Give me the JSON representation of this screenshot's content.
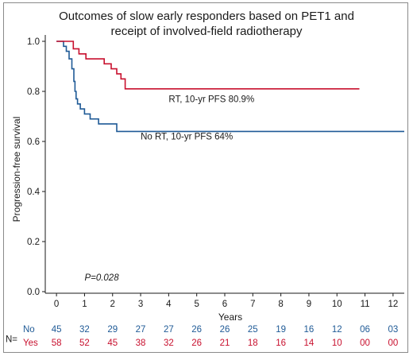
{
  "chart_data": {
    "type": "line",
    "title": "Outcomes of slow early responders based on PET1 and",
    "subtitle": "receipt of involved-field radiotherapy",
    "xlabel": "Years",
    "ylabel": "Progression-free survival",
    "xlim": [
      -0.4,
      12.4
    ],
    "ylim": [
      0.0,
      1.0
    ],
    "x_ticks": [
      "0",
      "1",
      "2",
      "3",
      "4",
      "5",
      "6",
      "7",
      "8",
      "9",
      "10",
      "11",
      "12"
    ],
    "y_ticks": [
      "0.0",
      "0.2",
      "0.4",
      "0.6",
      "0.8",
      "1.0"
    ],
    "grid": false,
    "series": [
      {
        "name": "No",
        "color": "#1f5a96",
        "label": "No RT, 10-yr PFS 64%",
        "label_at": [
          3.0,
          0.62
        ],
        "x": [
          0,
          0.25,
          0.25,
          0.35,
          0.35,
          0.45,
          0.45,
          0.55,
          0.55,
          0.62,
          0.62,
          0.66,
          0.66,
          0.7,
          0.7,
          0.75,
          0.75,
          0.85,
          0.85,
          1.0,
          1.0,
          1.2,
          1.2,
          1.5,
          1.5,
          2.15,
          2.15,
          12.4
        ],
        "y": [
          1.0,
          1.0,
          0.98,
          0.98,
          0.96,
          0.96,
          0.93,
          0.93,
          0.89,
          0.89,
          0.84,
          0.84,
          0.8,
          0.8,
          0.77,
          0.77,
          0.75,
          0.75,
          0.73,
          0.73,
          0.71,
          0.71,
          0.69,
          0.69,
          0.67,
          0.67,
          0.64,
          0.64
        ]
      },
      {
        "name": "Yes",
        "color": "#c8102e",
        "label": "RT, 10-yr PFS 80.9%",
        "label_at": [
          4.0,
          0.77
        ],
        "x": [
          0,
          0.6,
          0.6,
          0.8,
          0.8,
          1.05,
          1.05,
          1.7,
          1.7,
          1.95,
          1.95,
          2.15,
          2.15,
          2.3,
          2.3,
          2.45,
          2.45,
          10.8
        ],
        "y": [
          1.0,
          1.0,
          0.97,
          0.97,
          0.95,
          0.95,
          0.93,
          0.93,
          0.91,
          0.91,
          0.89,
          0.89,
          0.87,
          0.87,
          0.85,
          0.85,
          0.81,
          0.81
        ]
      }
    ],
    "annotations": [
      {
        "text": "P=0.028",
        "x": 1.0,
        "y": 0.045,
        "italic": true
      }
    ],
    "risk_table": {
      "label": "N=",
      "rows": [
        {
          "name": "No",
          "color": "#1f5a96",
          "values": [
            "45",
            "32",
            "29",
            "27",
            "27",
            "26",
            "26",
            "25",
            "19",
            "16",
            "12",
            "06",
            "03"
          ]
        },
        {
          "name": "Yes",
          "color": "#c8102e",
          "values": [
            "58",
            "52",
            "45",
            "38",
            "32",
            "26",
            "21",
            "18",
            "16",
            "14",
            "10",
            "00",
            "00"
          ]
        }
      ]
    }
  }
}
